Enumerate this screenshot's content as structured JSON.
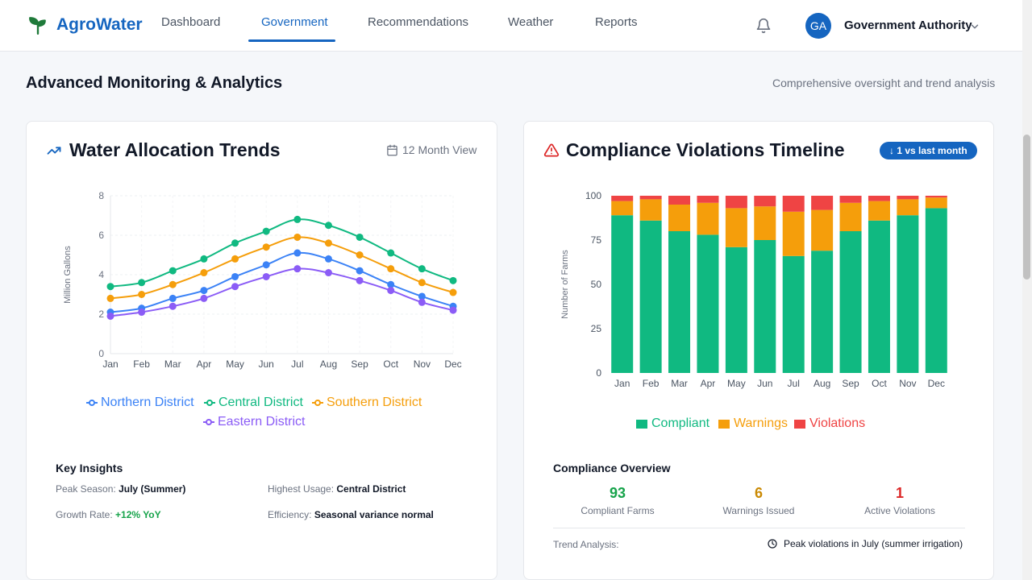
{
  "app": {
    "name": "AgroWater"
  },
  "nav": {
    "items": [
      {
        "label": "Dashboard",
        "active": false
      },
      {
        "label": "Government",
        "active": true
      },
      {
        "label": "Recommendations",
        "active": false
      },
      {
        "label": "Weather",
        "active": false
      },
      {
        "label": "Reports",
        "active": false
      }
    ]
  },
  "user": {
    "initials": "GA",
    "name": "Government Authority"
  },
  "page": {
    "title": "Advanced Monitoring & Analytics",
    "subtitle": "Comprehensive oversight and trend analysis"
  },
  "allocation_card": {
    "title": "Water Allocation Trends",
    "view_label": "12 Month View",
    "insights_title": "Key Insights",
    "insights": [
      {
        "label": "Peak Season:",
        "value": "July (Summer)"
      },
      {
        "label": "Highest Usage:",
        "value": "Central District"
      },
      {
        "label": "Growth Rate:",
        "value": "+12% YoY"
      },
      {
        "label": "Efficiency:",
        "value": "Seasonal variance normal"
      }
    ]
  },
  "compliance_card": {
    "title": "Compliance Violations Timeline",
    "badge": "↓ 1 vs last month",
    "overview_title": "Compliance Overview",
    "stats": [
      {
        "value": "93",
        "label": "Compliant Farms"
      },
      {
        "value": "6",
        "label": "Warnings Issued"
      },
      {
        "value": "1",
        "label": "Active Violations"
      }
    ],
    "trend_label": "Trend Analysis:",
    "trend_value": "Peak violations in July (summer irrigation)"
  },
  "colors": {
    "primary": "#1565c0",
    "northern": "#3b82f6",
    "central": "#10b981",
    "southern": "#f59e0b",
    "eastern": "#8b5cf6",
    "compliant": "#10b981",
    "warnings": "#f59e0b",
    "violations": "#ef4444"
  },
  "chart_data": [
    {
      "type": "line",
      "ylabel": "Million Gallons",
      "ylim": [
        0,
        8
      ],
      "yticks": [
        0,
        2,
        4,
        6,
        8
      ],
      "grid": true,
      "legend_position": "bottom",
      "categories": [
        "Jan",
        "Feb",
        "Mar",
        "Apr",
        "May",
        "Jun",
        "Jul",
        "Aug",
        "Sep",
        "Oct",
        "Nov",
        "Dec"
      ],
      "series": [
        {
          "name": "Northern District",
          "color": "#3b82f6",
          "values": [
            2.1,
            2.3,
            2.8,
            3.2,
            3.9,
            4.5,
            5.1,
            4.8,
            4.2,
            3.5,
            2.9,
            2.4
          ]
        },
        {
          "name": "Central District",
          "color": "#10b981",
          "values": [
            3.4,
            3.6,
            4.2,
            4.8,
            5.6,
            6.2,
            6.8,
            6.5,
            5.9,
            5.1,
            4.3,
            3.7
          ]
        },
        {
          "name": "Southern District",
          "color": "#f59e0b",
          "values": [
            2.8,
            3.0,
            3.5,
            4.1,
            4.8,
            5.4,
            5.9,
            5.6,
            5.0,
            4.3,
            3.6,
            3.1
          ]
        },
        {
          "name": "Eastern District",
          "color": "#8b5cf6",
          "values": [
            1.9,
            2.1,
            2.4,
            2.8,
            3.4,
            3.9,
            4.3,
            4.1,
            3.7,
            3.2,
            2.6,
            2.2
          ]
        }
      ]
    },
    {
      "type": "bar",
      "stacked": true,
      "ylabel": "Number of Farms",
      "ylim": [
        0,
        100
      ],
      "yticks": [
        0,
        25,
        50,
        75,
        100
      ],
      "legend_position": "bottom",
      "categories": [
        "Jan",
        "Feb",
        "Mar",
        "Apr",
        "May",
        "Jun",
        "Jul",
        "Aug",
        "Sep",
        "Oct",
        "Nov",
        "Dec"
      ],
      "series": [
        {
          "name": "Compliant",
          "color": "#10b981",
          "values": [
            89,
            86,
            80,
            78,
            71,
            75,
            66,
            69,
            80,
            86,
            89,
            93
          ]
        },
        {
          "name": "Warnings",
          "color": "#f59e0b",
          "values": [
            8,
            12,
            15,
            18,
            22,
            19,
            25,
            23,
            16,
            11,
            9,
            6
          ]
        },
        {
          "name": "Violations",
          "color": "#ef4444",
          "values": [
            3,
            2,
            5,
            4,
            7,
            6,
            9,
            8,
            4,
            3,
            2,
            1
          ]
        }
      ]
    }
  ]
}
